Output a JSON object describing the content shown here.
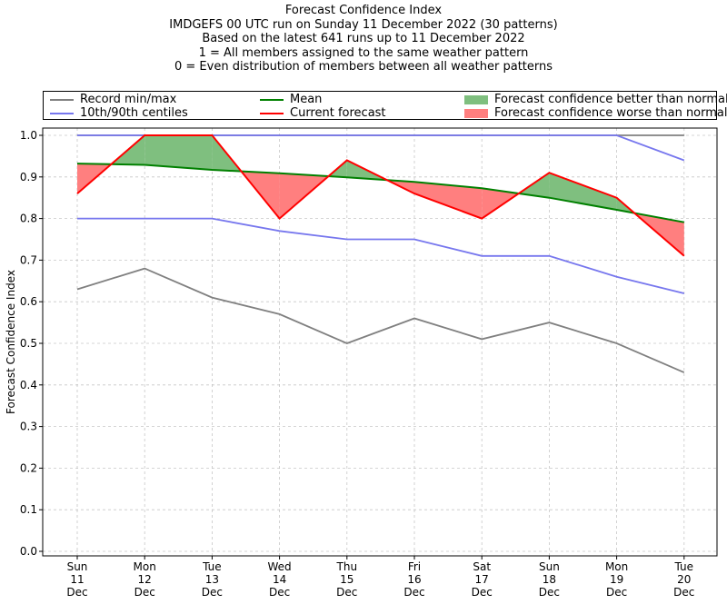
{
  "chart_data": {
    "type": "line",
    "title": "Forecast Confidence Index",
    "subtitle_lines": [
      "IMDGEFS 00 UTC run on Sunday 11 December 2022 (30 patterns)",
      "Based on the latest 641 runs up to 11 December 2022",
      "1 = All members assigned to the same weather pattern",
      "0 = Even distribution of members between all weather patterns"
    ],
    "xlabel": "",
    "ylabel": "Forecast Confidence Index",
    "ylim": [
      0,
      1.0
    ],
    "yticks": [
      "0.0",
      "0.1",
      "0.2",
      "0.3",
      "0.4",
      "0.5",
      "0.6",
      "0.7",
      "0.8",
      "0.9",
      "1.0"
    ],
    "categories": [
      {
        "day": "Sun",
        "date": "11",
        "month": "Dec"
      },
      {
        "day": "Mon",
        "date": "12",
        "month": "Dec"
      },
      {
        "day": "Tue",
        "date": "13",
        "month": "Dec"
      },
      {
        "day": "Wed",
        "date": "14",
        "month": "Dec"
      },
      {
        "day": "Thu",
        "date": "15",
        "month": "Dec"
      },
      {
        "day": "Fri",
        "date": "16",
        "month": "Dec"
      },
      {
        "day": "Sat",
        "date": "17",
        "month": "Dec"
      },
      {
        "day": "Sun",
        "date": "18",
        "month": "Dec"
      },
      {
        "day": "Mon",
        "date": "19",
        "month": "Dec"
      },
      {
        "day": "Tue",
        "date": "20",
        "month": "Dec"
      }
    ],
    "grid": true,
    "legend_position": "top",
    "series": [
      {
        "name": "Record min/max",
        "key": "record_max",
        "color": "#808080",
        "values": [
          1.0,
          1.0,
          1.0,
          1.0,
          1.0,
          1.0,
          1.0,
          1.0,
          1.0,
          1.0
        ]
      },
      {
        "name": "Record min/max",
        "key": "record_min",
        "color": "#808080",
        "values": [
          0.63,
          0.68,
          0.61,
          0.57,
          0.5,
          0.56,
          0.51,
          0.55,
          0.5,
          0.43
        ]
      },
      {
        "name": "10th/90th centiles",
        "key": "centile_90",
        "color": "#7777ee",
        "values": [
          1.0,
          1.0,
          1.0,
          1.0,
          1.0,
          1.0,
          1.0,
          1.0,
          1.0,
          0.94
        ]
      },
      {
        "name": "10th/90th centiles",
        "key": "centile_10",
        "color": "#7777ee",
        "values": [
          0.8,
          0.8,
          0.8,
          0.77,
          0.75,
          0.75,
          0.71,
          0.71,
          0.66,
          0.62
        ]
      },
      {
        "name": "Mean",
        "key": "mean",
        "color": "#008000",
        "values": [
          0.932,
          0.929,
          0.917,
          0.909,
          0.899,
          0.888,
          0.873,
          0.85,
          0.821,
          0.791
        ]
      },
      {
        "name": "Current forecast",
        "key": "current",
        "color": "#ff0000",
        "values": [
          0.86,
          1.0,
          1.0,
          0.8,
          0.94,
          0.86,
          0.8,
          0.91,
          0.85,
          0.71
        ]
      }
    ],
    "fills": {
      "better": {
        "name": "Forecast confidence better than normal",
        "color": "#7fbf7f"
      },
      "worse": {
        "name": "Forecast confidence worse than normal",
        "color": "#ff7f7f"
      }
    }
  },
  "legend": {
    "record": "Record min/max",
    "centiles": "10th/90th centiles",
    "mean": "Mean",
    "current": "Current forecast",
    "better": "Forecast confidence better than normal",
    "worse": "Forecast confidence worse than normal"
  }
}
